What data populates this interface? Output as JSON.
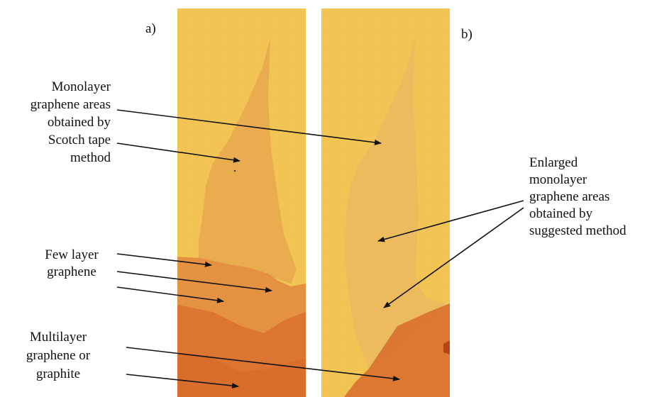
{
  "figure": {
    "panel_a_label": "a)",
    "panel_b_label": "b)",
    "annotations": {
      "monolayer": "Monolayer\ngraphene areas\nobtained by\nScotch tape\nmethod",
      "few_layer": "Few layer\ngraphene",
      "multilayer": "Multilayer\ngraphene or\ngraphite",
      "enlarged": "Enlarged\nmonolayer\ngraphene areas\nobtained by\nsuggested method"
    }
  },
  "colors": {
    "background_yellow": "#f2c454",
    "monolayer_region": "#e7a94f",
    "few_layer_region": "#e38c40",
    "multilayer_region": "#d9702e",
    "arrow": "#111111"
  }
}
